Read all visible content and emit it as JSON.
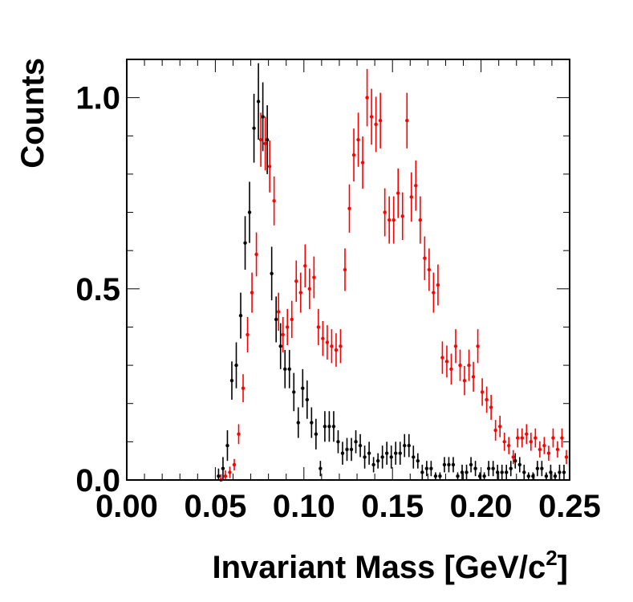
{
  "chart_data": {
    "type": "scatter",
    "title": "",
    "xlabel": "Invariant Mass [GeV/c",
    "xlabel_superscript": "2",
    "xlabel_suffix": "]",
    "ylabel": "Counts",
    "xlim": [
      0.0,
      0.25
    ],
    "ylim": [
      0.0,
      1.1
    ],
    "x_ticks": [
      {
        "value": 0.0,
        "label": "0.00"
      },
      {
        "value": 0.05,
        "label": "0.05"
      },
      {
        "value": 0.1,
        "label": "0.10"
      },
      {
        "value": 0.15,
        "label": "0.15"
      },
      {
        "value": 0.2,
        "label": "0.20"
      },
      {
        "value": 0.25,
        "label": "0.25"
      }
    ],
    "y_ticks": [
      {
        "value": 0.0,
        "label": "0.0"
      },
      {
        "value": 0.5,
        "label": "0.5"
      },
      {
        "value": 1.0,
        "label": "1.0"
      }
    ],
    "grid": false,
    "series": [
      {
        "name": "black",
        "color": "#000000",
        "x": [
          0.0525,
          0.055,
          0.0575,
          0.06,
          0.0625,
          0.065,
          0.0675,
          0.07,
          0.0725,
          0.075,
          0.0775,
          0.08,
          0.0825,
          0.085,
          0.0875,
          0.09,
          0.0925,
          0.095,
          0.0975,
          0.1,
          0.1025,
          0.105,
          0.1075,
          0.11,
          0.1125,
          0.115,
          0.1175,
          0.12,
          0.1225,
          0.125,
          0.1275,
          0.13,
          0.1325,
          0.135,
          0.1375,
          0.14,
          0.1425,
          0.145,
          0.1475,
          0.15,
          0.1525,
          0.155,
          0.1575,
          0.16,
          0.1625,
          0.165,
          0.1675,
          0.17,
          0.1725,
          0.175,
          0.1775,
          0.18,
          0.1825,
          0.185,
          0.1875,
          0.19,
          0.1925,
          0.195,
          0.1975,
          0.2,
          0.2025,
          0.205,
          0.2075,
          0.21,
          0.2125,
          0.215,
          0.2175,
          0.22,
          0.2225,
          0.225,
          0.2275,
          0.23,
          0.2325,
          0.235,
          0.2375,
          0.24,
          0.2425,
          0.245,
          0.2475
        ],
        "y": [
          0.01,
          0.03,
          0.09,
          0.26,
          0.3,
          0.43,
          0.62,
          0.7,
          0.92,
          0.99,
          0.95,
          0.89,
          0.54,
          0.42,
          0.35,
          0.29,
          0.29,
          0.23,
          0.15,
          0.24,
          0.21,
          0.15,
          0.12,
          0.03,
          0.14,
          0.14,
          0.14,
          0.1,
          0.07,
          0.08,
          0.08,
          0.1,
          0.09,
          0.06,
          0.07,
          0.04,
          0.05,
          0.06,
          0.07,
          0.06,
          0.07,
          0.07,
          0.09,
          0.09,
          0.06,
          0.05,
          0.02,
          0.03,
          0.03,
          0.01,
          0.01,
          0.04,
          0.04,
          0.04,
          0.01,
          0.02,
          0.02,
          0.04,
          0.03,
          0.01,
          0.01,
          0.03,
          0.03,
          0.02,
          0.02,
          0.02,
          0.03,
          0.05,
          0.04,
          0.02,
          0.01,
          0.01,
          0.03,
          0.03,
          0.01,
          0.02,
          0.01,
          0.02,
          0.02
        ],
        "err": [
          0.02,
          0.03,
          0.04,
          0.05,
          0.06,
          0.06,
          0.07,
          0.08,
          0.09,
          0.1,
          0.09,
          0.09,
          0.07,
          0.06,
          0.06,
          0.05,
          0.05,
          0.05,
          0.04,
          0.05,
          0.05,
          0.04,
          0.04,
          0.02,
          0.04,
          0.04,
          0.04,
          0.03,
          0.03,
          0.03,
          0.03,
          0.03,
          0.03,
          0.03,
          0.03,
          0.02,
          0.02,
          0.03,
          0.03,
          0.03,
          0.03,
          0.03,
          0.03,
          0.03,
          0.03,
          0.02,
          0.02,
          0.02,
          0.02,
          0.01,
          0.01,
          0.02,
          0.02,
          0.02,
          0.01,
          0.02,
          0.02,
          0.02,
          0.02,
          0.01,
          0.01,
          0.02,
          0.02,
          0.02,
          0.02,
          0.02,
          0.02,
          0.02,
          0.02,
          0.02,
          0.01,
          0.01,
          0.02,
          0.02,
          0.01,
          0.02,
          0.01,
          0.02,
          0.02
        ]
      },
      {
        "name": "red",
        "color": "#ff0000",
        "x": [
          0.0525,
          0.055,
          0.0575,
          0.06,
          0.0625,
          0.065,
          0.0675,
          0.07,
          0.0725,
          0.075,
          0.0775,
          0.08,
          0.0825,
          0.085,
          0.0875,
          0.09,
          0.0925,
          0.095,
          0.0975,
          0.1,
          0.1025,
          0.105,
          0.1075,
          0.11,
          0.1125,
          0.115,
          0.1175,
          0.12,
          0.1225,
          0.125,
          0.1275,
          0.13,
          0.1325,
          0.135,
          0.1375,
          0.14,
          0.1425,
          0.145,
          0.1475,
          0.15,
          0.1525,
          0.155,
          0.1575,
          0.16,
          0.1625,
          0.165,
          0.1675,
          0.17,
          0.1725,
          0.175,
          0.1775,
          0.18,
          0.1825,
          0.185,
          0.1875,
          0.19,
          0.1925,
          0.195,
          0.1975,
          0.2,
          0.2025,
          0.205,
          0.2075,
          0.21,
          0.2125,
          0.215,
          0.2175,
          0.22,
          0.2225,
          0.225,
          0.2275,
          0.23,
          0.2325,
          0.235,
          0.2375,
          0.24,
          0.2425,
          0.245,
          0.2475
        ],
        "y": [
          0.0,
          0.01,
          0.02,
          0.04,
          0.12,
          0.24,
          0.38,
          0.49,
          0.59,
          0.89,
          0.88,
          0.82,
          0.73,
          0.44,
          0.38,
          0.4,
          0.42,
          0.52,
          0.49,
          0.56,
          0.5,
          0.53,
          0.4,
          0.37,
          0.36,
          0.35,
          0.34,
          0.35,
          0.55,
          0.71,
          0.85,
          0.89,
          0.83,
          1.0,
          0.95,
          0.93,
          0.94,
          0.7,
          0.68,
          0.68,
          0.75,
          0.69,
          0.94,
          0.74,
          0.77,
          0.68,
          0.58,
          0.55,
          0.49,
          0.51,
          0.32,
          0.31,
          0.29,
          0.35,
          0.3,
          0.26,
          0.3,
          0.27,
          0.35,
          0.23,
          0.21,
          0.19,
          0.13,
          0.14,
          0.1,
          0.09,
          0.06,
          0.11,
          0.11,
          0.12,
          0.1,
          0.11,
          0.08,
          0.09,
          0.07,
          0.11,
          0.08,
          0.11,
          0.06
        ]
      }
    ]
  }
}
